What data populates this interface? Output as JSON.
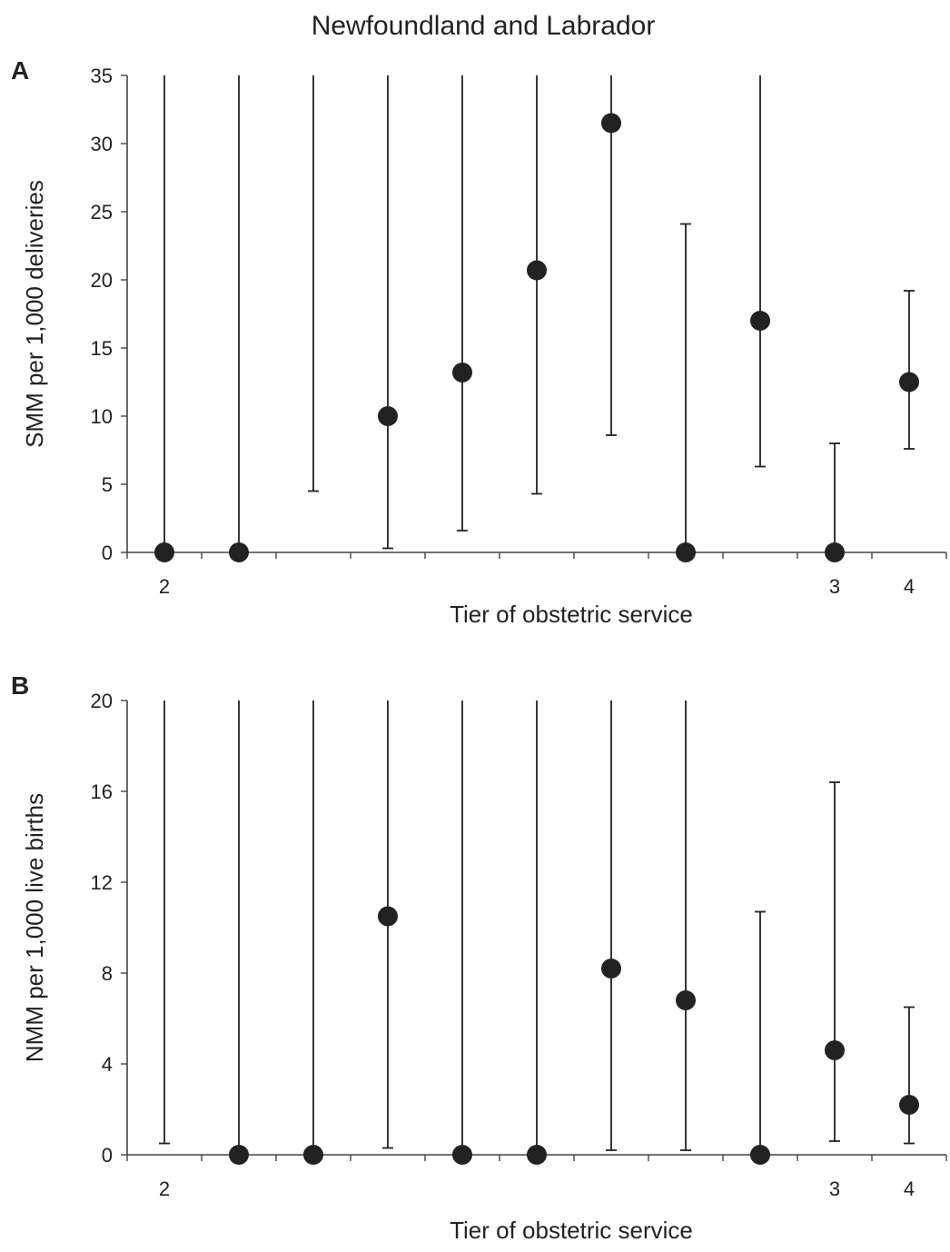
{
  "figure": {
    "title": "Newfoundland and Labrador"
  },
  "chart_data": [
    {
      "type": "scatter",
      "panel_label": "A",
      "title": "",
      "xlabel": "Tier of obstetric service",
      "ylabel": "SMM per 1,000 deliveries",
      "ylim": [
        0,
        35
      ],
      "y_ticks": [
        0,
        5,
        10,
        15,
        20,
        25,
        30,
        35
      ],
      "x_tick_labels": [
        "2",
        "",
        "",
        "",
        "",
        "",
        "",
        "",
        "",
        "3",
        "4"
      ],
      "grid": false,
      "error_bars": true,
      "points": [
        {
          "x": 1,
          "y": 0,
          "lower": 0,
          "upper": 35
        },
        {
          "x": 2,
          "y": 0,
          "lower": 0,
          "upper": 35
        },
        {
          "x": 3,
          "y": null,
          "lower": 4.5,
          "upper": 35
        },
        {
          "x": 4,
          "y": 10,
          "lower": 0.3,
          "upper": 35
        },
        {
          "x": 5,
          "y": 13.2,
          "lower": 1.6,
          "upper": 35
        },
        {
          "x": 6,
          "y": 20.7,
          "lower": 4.3,
          "upper": 35
        },
        {
          "x": 7,
          "y": 31.5,
          "lower": 8.6,
          "upper": 35
        },
        {
          "x": 8,
          "y": 0,
          "lower": 0,
          "upper": 24.1
        },
        {
          "x": 9,
          "y": 17,
          "lower": 6.3,
          "upper": 35
        },
        {
          "x": 10,
          "y": 0,
          "lower": 0,
          "upper": 8
        },
        {
          "x": 11,
          "y": 12.5,
          "lower": 7.6,
          "upper": 19.2
        }
      ]
    },
    {
      "type": "scatter",
      "panel_label": "B",
      "title": "",
      "xlabel": "Tier of obstetric service",
      "ylabel": "NMM per 1,000 live births",
      "ylim": [
        0,
        20
      ],
      "y_ticks": [
        0,
        4,
        8,
        12,
        16,
        20
      ],
      "x_tick_labels": [
        "2",
        "",
        "",
        "",
        "",
        "",
        "",
        "",
        "",
        "3",
        "4"
      ],
      "grid": false,
      "error_bars": true,
      "points": [
        {
          "x": 1,
          "y": null,
          "lower": 0.5,
          "upper": 20
        },
        {
          "x": 2,
          "y": 0,
          "lower": 0,
          "upper": 20
        },
        {
          "x": 3,
          "y": 0,
          "lower": 0,
          "upper": 20
        },
        {
          "x": 4,
          "y": 10.5,
          "lower": 0.3,
          "upper": 20
        },
        {
          "x": 5,
          "y": 0,
          "lower": 0,
          "upper": 20
        },
        {
          "x": 6,
          "y": 0,
          "lower": 0,
          "upper": 20
        },
        {
          "x": 7,
          "y": 8.2,
          "lower": 0.2,
          "upper": 20
        },
        {
          "x": 8,
          "y": 6.8,
          "lower": 0.2,
          "upper": 20
        },
        {
          "x": 9,
          "y": 0,
          "lower": 0,
          "upper": 10.7
        },
        {
          "x": 10,
          "y": 4.6,
          "lower": 0.6,
          "upper": 16.4
        },
        {
          "x": 11,
          "y": 2.2,
          "lower": 0.5,
          "upper": 6.5
        }
      ]
    }
  ]
}
